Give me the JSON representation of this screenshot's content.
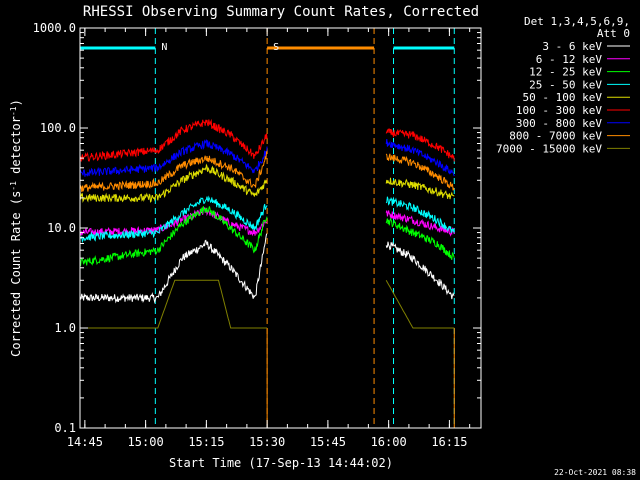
{
  "chart_data": {
    "type": "line",
    "title": "RHESSI Observing Summary Count Rates, Corrected",
    "xlabel": "Start Time (17-Sep-13 14:44:02)",
    "ylabel_main": "Corrected Count Rate (s",
    "ylabel_sup1": "-1",
    "ylabel_mid": " detector",
    "ylabel_sup2": "-1",
    "ylabel_end": ")",
    "yscale": "log",
    "ylim": [
      0.1,
      1000
    ],
    "xlim_minutes": [
      14.73,
      16.38
    ],
    "ytick_labels": [
      {
        "label": "0.1",
        "value": 0.1
      },
      {
        "label": "1.0",
        "value": 1
      },
      {
        "label": "10.0",
        "value": 10
      },
      {
        "label": "100.0",
        "value": 100
      },
      {
        "label": "1000.0",
        "value": 1000
      }
    ],
    "xtick_labels": [
      {
        "label": "14:45",
        "value": 14.75
      },
      {
        "label": "15:00",
        "value": 15.0
      },
      {
        "label": "15:15",
        "value": 15.25
      },
      {
        "label": "15:30",
        "value": 15.5
      },
      {
        "label": "15:45",
        "value": 15.75
      },
      {
        "label": "16:00",
        "value": 16.0
      },
      {
        "label": "16:15",
        "value": 16.25
      }
    ],
    "legend": {
      "position": "top-right",
      "header_line1": "Det 1,3,4,5,6,9,",
      "header_line2": "Att 0",
      "entries": [
        {
          "name": "3 - 6 keV",
          "color": "#ffffff"
        },
        {
          "name": "6 - 12 keV",
          "color": "#ff00ff"
        },
        {
          "name": "12 - 25 keV",
          "color": "#00ff00"
        },
        {
          "name": "25 - 50 keV",
          "color": "#00ffff"
        },
        {
          "name": "50 - 100 keV",
          "color": "#dddd00"
        },
        {
          "name": "100 - 300 keV",
          "color": "#ff0000"
        },
        {
          "name": "300 - 800 keV",
          "color": "#0000ff"
        },
        {
          "name": "800 - 7000 keV",
          "color": "#ff8c00"
        },
        {
          "name": "7000 - 15000 keV",
          "color": "#808000"
        }
      ]
    },
    "segments": [
      {
        "start": 14.73,
        "end": 15.5
      },
      {
        "start": 15.99,
        "end": 16.27
      }
    ],
    "series": [
      {
        "name": "3 - 6 keV",
        "color": "#ffffff",
        "seg1": [
          [
            14.73,
            2
          ],
          [
            15.05,
            2
          ],
          [
            15.15,
            5
          ],
          [
            15.25,
            7
          ],
          [
            15.35,
            4
          ],
          [
            15.45,
            2
          ],
          [
            15.5,
            9
          ]
        ],
        "seg2": [
          [
            15.99,
            7
          ],
          [
            16.1,
            5
          ],
          [
            16.2,
            3
          ],
          [
            16.27,
            2
          ]
        ]
      },
      {
        "name": "6 - 12 keV",
        "color": "#ff00ff",
        "seg1": [
          [
            14.73,
            9
          ],
          [
            15.05,
            9.5
          ],
          [
            15.15,
            12
          ],
          [
            15.25,
            15
          ],
          [
            15.35,
            11
          ],
          [
            15.45,
            9
          ],
          [
            15.5,
            12
          ]
        ],
        "seg2": [
          [
            15.99,
            14
          ],
          [
            16.1,
            12
          ],
          [
            16.2,
            10
          ],
          [
            16.27,
            9
          ]
        ]
      },
      {
        "name": "12 - 25 keV",
        "color": "#00ff00",
        "seg1": [
          [
            14.73,
            4.5
          ],
          [
            15.05,
            6
          ],
          [
            15.15,
            11
          ],
          [
            15.25,
            16
          ],
          [
            15.35,
            10
          ],
          [
            15.45,
            6
          ],
          [
            15.5,
            14
          ]
        ],
        "seg2": [
          [
            15.99,
            12
          ],
          [
            16.1,
            9
          ],
          [
            16.2,
            7
          ],
          [
            16.27,
            5
          ]
        ]
      },
      {
        "name": "25 - 50 keV",
        "color": "#00ffff",
        "seg1": [
          [
            14.73,
            8
          ],
          [
            15.05,
            9
          ],
          [
            15.15,
            14
          ],
          [
            15.25,
            20
          ],
          [
            15.35,
            15
          ],
          [
            15.45,
            10
          ],
          [
            15.5,
            18
          ]
        ],
        "seg2": [
          [
            15.99,
            19
          ],
          [
            16.1,
            16
          ],
          [
            16.2,
            12
          ],
          [
            16.27,
            9
          ]
        ]
      },
      {
        "name": "50 - 100 keV",
        "color": "#dddd00",
        "seg1": [
          [
            14.73,
            20
          ],
          [
            15.05,
            20
          ],
          [
            15.15,
            30
          ],
          [
            15.25,
            40
          ],
          [
            15.35,
            30
          ],
          [
            15.45,
            21
          ],
          [
            15.5,
            30
          ]
        ],
        "seg2": [
          [
            15.99,
            30
          ],
          [
            16.1,
            27
          ],
          [
            16.2,
            23
          ],
          [
            16.27,
            20
          ]
        ]
      },
      {
        "name": "100 - 300 keV",
        "color": "#ff0000",
        "seg1": [
          [
            14.73,
            50
          ],
          [
            15.05,
            60
          ],
          [
            15.15,
            95
          ],
          [
            15.25,
            115
          ],
          [
            15.35,
            85
          ],
          [
            15.45,
            52
          ],
          [
            15.5,
            85
          ]
        ],
        "seg2": [
          [
            15.99,
            90
          ],
          [
            16.1,
            85
          ],
          [
            16.2,
            65
          ],
          [
            16.27,
            50
          ]
        ]
      },
      {
        "name": "300 - 800 keV",
        "color": "#0000ff",
        "seg1": [
          [
            14.73,
            35
          ],
          [
            15.05,
            40
          ],
          [
            15.15,
            58
          ],
          [
            15.25,
            70
          ],
          [
            15.35,
            55
          ],
          [
            15.45,
            37
          ],
          [
            15.5,
            60
          ]
        ],
        "seg2": [
          [
            15.99,
            72
          ],
          [
            16.1,
            60
          ],
          [
            16.2,
            45
          ],
          [
            16.27,
            35
          ]
        ]
      },
      {
        "name": "800 - 7000 keV",
        "color": "#ff8c00",
        "seg1": [
          [
            14.73,
            25
          ],
          [
            15.05,
            28
          ],
          [
            15.15,
            42
          ],
          [
            15.25,
            50
          ],
          [
            15.35,
            40
          ],
          [
            15.45,
            26
          ],
          [
            15.5,
            55
          ]
        ],
        "seg2": [
          [
            15.99,
            52
          ],
          [
            16.1,
            45
          ],
          [
            16.2,
            33
          ],
          [
            16.27,
            25
          ]
        ]
      },
      {
        "name": "7000 - 15000 keV",
        "color": "#808000",
        "seg1": [
          [
            14.73,
            1
          ],
          [
            15.05,
            1
          ],
          [
            15.12,
            3
          ],
          [
            15.3,
            3
          ],
          [
            15.35,
            1
          ],
          [
            15.5,
            1
          ]
        ],
        "seg2": [
          [
            15.99,
            3
          ],
          [
            16.1,
            1
          ],
          [
            16.27,
            1
          ]
        ]
      }
    ],
    "flags": [
      {
        "label": "N",
        "color": "#00ffff",
        "markers": [
          15.04,
          16.02,
          16.27
        ],
        "bars": [
          [
            14.73,
            15.04
          ],
          [
            16.02,
            16.27
          ]
        ]
      },
      {
        "label": "S",
        "color": "#ff8c00",
        "markers": [
          15.5,
          15.94
        ],
        "bars": [
          [
            15.5,
            15.94
          ]
        ]
      }
    ],
    "footer_timestamp": "22-Oct-2021 08:38"
  }
}
